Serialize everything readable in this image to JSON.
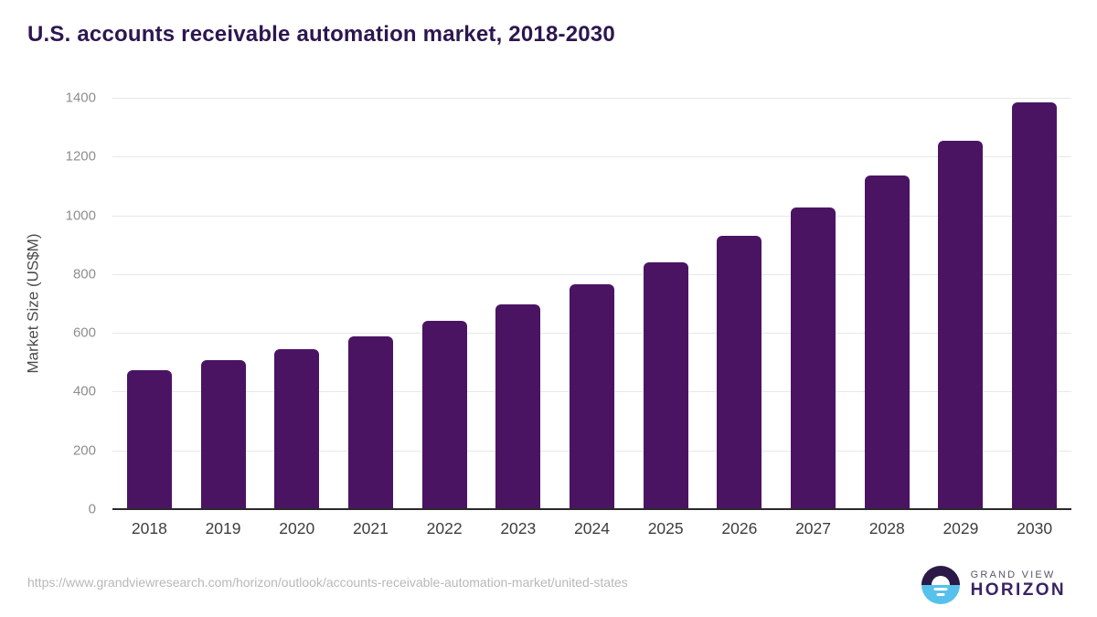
{
  "header": {
    "title": "U.S. accounts receivable automation market, 2018-2030"
  },
  "chart_data": {
    "type": "bar",
    "title": "U.S. accounts receivable automation market, 2018-2030",
    "categories": [
      "2018",
      "2019",
      "2020",
      "2021",
      "2022",
      "2023",
      "2024",
      "2025",
      "2026",
      "2027",
      "2028",
      "2029",
      "2030"
    ],
    "values": [
      473,
      508,
      546,
      589,
      640,
      698,
      764,
      841,
      929,
      1026,
      1135,
      1254,
      1385
    ],
    "xlabel": "",
    "ylabel": "Market Size (US$M)",
    "ylim": [
      0,
      1400
    ],
    "ytick_step": 200,
    "yticks": [
      0,
      200,
      400,
      600,
      800,
      1000,
      1200,
      1400
    ],
    "grid": true,
    "legend": false,
    "bar_color": "#4a1463"
  },
  "footer": {
    "source_url": "https://www.grandviewresearch.com/horizon/outlook/accounts-receivable-automation-market/united-states",
    "logo": {
      "top_text": "GRAND VIEW",
      "bottom_text": "HORIZON",
      "icon": "horizon-sun-over-water-icon",
      "icon_purple": "#2b1a47",
      "icon_blue": "#57c1ec"
    }
  },
  "colors": {
    "title": "#2d1650",
    "bar": "#4a1463",
    "gridline": "#e7e7e7",
    "axis_line": "#2a2a2a",
    "y_tick_text": "#8e8e8e",
    "x_tick_text": "#3d3d3d",
    "source_text": "#b8b8b8"
  }
}
